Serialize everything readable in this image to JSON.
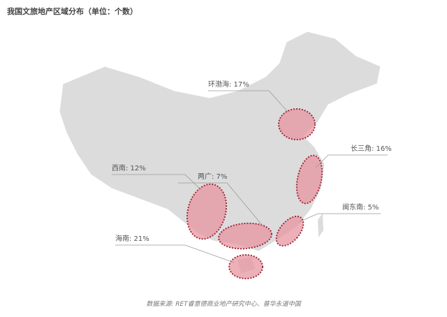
{
  "title": "我国文旅地产区域分布（单位：个数）",
  "source": "数据来源: RET睿意德商业地产研究中心、普华永道中国",
  "colors": {
    "map": "#dedede",
    "highlight": "#e8a4ad",
    "outline": "#a3273a"
  },
  "regions": [
    {
      "label": "环渤海: 17%",
      "name": "环渤海",
      "percent": 17
    },
    {
      "label": "长三角: 16%",
      "name": "长三角",
      "percent": 16
    },
    {
      "label": "西南: 12%",
      "name": "西南",
      "percent": 12
    },
    {
      "label": "两广: 7%",
      "name": "两广",
      "percent": 7
    },
    {
      "label": "闽东南: 5%",
      "name": "闽东南",
      "percent": 5
    },
    {
      "label": "海南: 21%",
      "name": "海南",
      "percent": 21
    }
  ]
}
